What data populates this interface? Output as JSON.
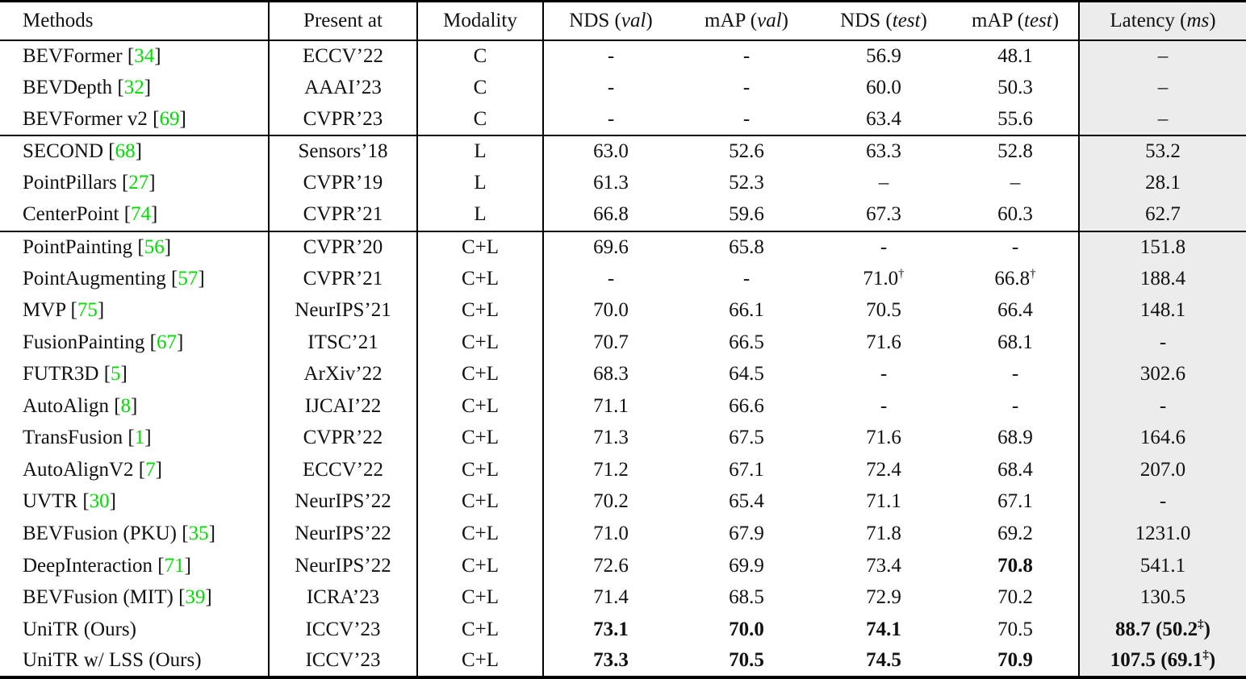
{
  "table": {
    "accent_cite_color": "#00dd00",
    "latency_bg_color": "#ececec",
    "columns": [
      {
        "key": "method",
        "label": "Methods"
      },
      {
        "key": "venue",
        "label": "Present at"
      },
      {
        "key": "modality",
        "label": "Modality"
      },
      {
        "key": "nds_val",
        "label": "NDS",
        "paren": "val"
      },
      {
        "key": "map_val",
        "label": "mAP",
        "paren": "val"
      },
      {
        "key": "nds_test",
        "label": "NDS",
        "paren": "test"
      },
      {
        "key": "map_test",
        "label": "mAP",
        "paren": "test"
      },
      {
        "key": "latency",
        "label": "Latency",
        "paren": "ms"
      }
    ],
    "groups": [
      {
        "name": "camera-only",
        "rows": [
          {
            "method": {
              "name": "BEVFormer",
              "cite": "34"
            },
            "venue": "ECCV’22",
            "modality": "C",
            "cells": [
              {
                "v": "-"
              },
              {
                "v": "-"
              },
              {
                "v": "56.9"
              },
              {
                "v": "48.1"
              },
              {
                "v": "–"
              }
            ]
          },
          {
            "method": {
              "name": "BEVDepth",
              "cite": "32"
            },
            "venue": "AAAI’23",
            "modality": "C",
            "cells": [
              {
                "v": "-"
              },
              {
                "v": "-"
              },
              {
                "v": "60.0"
              },
              {
                "v": "50.3"
              },
              {
                "v": "–"
              }
            ]
          },
          {
            "method": {
              "name": "BEVFormer v2",
              "cite": "69"
            },
            "venue": "CVPR’23",
            "modality": "C",
            "cells": [
              {
                "v": "-"
              },
              {
                "v": "-"
              },
              {
                "v": "63.4"
              },
              {
                "v": "55.6"
              },
              {
                "v": "–"
              }
            ]
          }
        ]
      },
      {
        "name": "lidar-only",
        "rows": [
          {
            "method": {
              "name": "SECOND",
              "cite": "68"
            },
            "venue": "Sensors’18",
            "modality": "L",
            "cells": [
              {
                "v": "63.0"
              },
              {
                "v": "52.6"
              },
              {
                "v": "63.3"
              },
              {
                "v": "52.8"
              },
              {
                "v": "53.2"
              }
            ]
          },
          {
            "method": {
              "name": "PointPillars",
              "cite": "27"
            },
            "venue": "CVPR’19",
            "modality": "L",
            "cells": [
              {
                "v": "61.3"
              },
              {
                "v": "52.3"
              },
              {
                "v": "–"
              },
              {
                "v": "–"
              },
              {
                "v": "28.1"
              }
            ]
          },
          {
            "method": {
              "name": "CenterPoint",
              "cite": "74"
            },
            "venue": "CVPR’21",
            "modality": "L",
            "cells": [
              {
                "v": "66.8"
              },
              {
                "v": "59.6"
              },
              {
                "v": "67.3"
              },
              {
                "v": "60.3"
              },
              {
                "v": "62.7"
              }
            ]
          }
        ]
      },
      {
        "name": "camera-plus-lidar",
        "rows": [
          {
            "method": {
              "name": "PointPainting",
              "cite": "56"
            },
            "venue": "CVPR’20",
            "modality": "C+L",
            "cells": [
              {
                "v": "69.6"
              },
              {
                "v": "65.8"
              },
              {
                "v": "-"
              },
              {
                "v": "-"
              },
              {
                "v": "151.8"
              }
            ]
          },
          {
            "method": {
              "name": "PointAugmenting",
              "cite": "57"
            },
            "venue": "CVPR’21",
            "modality": "C+L",
            "cells": [
              {
                "v": "-"
              },
              {
                "v": "-"
              },
              {
                "v": "71.0",
                "sup": "†"
              },
              {
                "v": "66.8",
                "sup": "†"
              },
              {
                "v": "188.4"
              }
            ]
          },
          {
            "method": {
              "name": "MVP",
              "cite": "75"
            },
            "venue": "NeurIPS’21",
            "modality": "C+L",
            "cells": [
              {
                "v": "70.0"
              },
              {
                "v": "66.1"
              },
              {
                "v": "70.5"
              },
              {
                "v": "66.4"
              },
              {
                "v": "148.1"
              }
            ]
          },
          {
            "method": {
              "name": "FusionPainting",
              "cite": "67"
            },
            "venue": "ITSC’21",
            "modality": "C+L",
            "cells": [
              {
                "v": "70.7"
              },
              {
                "v": "66.5"
              },
              {
                "v": "71.6"
              },
              {
                "v": "68.1"
              },
              {
                "v": "-"
              }
            ]
          },
          {
            "method": {
              "name": "FUTR3D",
              "cite": "5"
            },
            "venue": "ArXiv’22",
            "modality": "C+L",
            "cells": [
              {
                "v": "68.3"
              },
              {
                "v": "64.5"
              },
              {
                "v": "-"
              },
              {
                "v": "-"
              },
              {
                "v": "302.6"
              }
            ]
          },
          {
            "method": {
              "name": "AutoAlign",
              "cite": "8"
            },
            "venue": "IJCAI’22",
            "modality": "C+L",
            "cells": [
              {
                "v": "71.1"
              },
              {
                "v": "66.6"
              },
              {
                "v": "-"
              },
              {
                "v": "-"
              },
              {
                "v": "-"
              }
            ]
          },
          {
            "method": {
              "name": "TransFusion",
              "cite": "1"
            },
            "venue": "CVPR’22",
            "modality": "C+L",
            "cells": [
              {
                "v": "71.3"
              },
              {
                "v": "67.5"
              },
              {
                "v": "71.6"
              },
              {
                "v": "68.9"
              },
              {
                "v": "164.6"
              }
            ]
          },
          {
            "method": {
              "name": "AutoAlignV2",
              "cite": "7"
            },
            "venue": "ECCV’22",
            "modality": "C+L",
            "cells": [
              {
                "v": "71.2"
              },
              {
                "v": "67.1"
              },
              {
                "v": "72.4"
              },
              {
                "v": "68.4"
              },
              {
                "v": "207.0"
              }
            ]
          },
          {
            "method": {
              "name": "UVTR",
              "cite": "30"
            },
            "venue": "NeurIPS’22",
            "modality": "C+L",
            "cells": [
              {
                "v": "70.2"
              },
              {
                "v": "65.4"
              },
              {
                "v": "71.1"
              },
              {
                "v": "67.1"
              },
              {
                "v": "-"
              }
            ]
          },
          {
            "method": {
              "name": "BEVFusion (PKU)",
              "cite": "35"
            },
            "venue": "NeurIPS’22",
            "modality": "C+L",
            "cells": [
              {
                "v": "71.0"
              },
              {
                "v": "67.9"
              },
              {
                "v": "71.8"
              },
              {
                "v": "69.2"
              },
              {
                "v": "1231.0"
              }
            ]
          },
          {
            "method": {
              "name": "DeepInteraction",
              "cite": "71"
            },
            "venue": "NeurIPS’22",
            "modality": "C+L",
            "cells": [
              {
                "v": "72.6"
              },
              {
                "v": "69.9"
              },
              {
                "v": "73.4"
              },
              {
                "v": "70.8",
                "b": true
              },
              {
                "v": "541.1"
              }
            ]
          },
          {
            "method": {
              "name": "BEVFusion (MIT)",
              "cite": "39"
            },
            "venue": "ICRA’23",
            "modality": "C+L",
            "cells": [
              {
                "v": "71.4"
              },
              {
                "v": "68.5"
              },
              {
                "v": "72.9"
              },
              {
                "v": "70.2"
              },
              {
                "v": "130.5"
              }
            ]
          },
          {
            "method": {
              "name": "UniTR (Ours)"
            },
            "venue": "ICCV’23",
            "modality": "C+L",
            "cells": [
              {
                "v": "73.1",
                "b": true
              },
              {
                "v": "70.0",
                "b": true
              },
              {
                "v": "74.1",
                "b": true
              },
              {
                "v": "70.5"
              },
              {
                "v": "88.7 (50.2",
                "sup": "‡",
                "tail": ")",
                "b": true
              }
            ]
          },
          {
            "method": {
              "name": "UniTR w/ LSS (Ours)"
            },
            "venue": "ICCV’23",
            "modality": "C+L",
            "cells": [
              {
                "v": "73.3",
                "b": true
              },
              {
                "v": "70.5",
                "b": true
              },
              {
                "v": "74.5",
                "b": true
              },
              {
                "v": "70.9",
                "b": true
              },
              {
                "v": "107.5 (69.1",
                "sup": "‡",
                "tail": ")",
                "b": true
              }
            ]
          }
        ]
      }
    ]
  }
}
